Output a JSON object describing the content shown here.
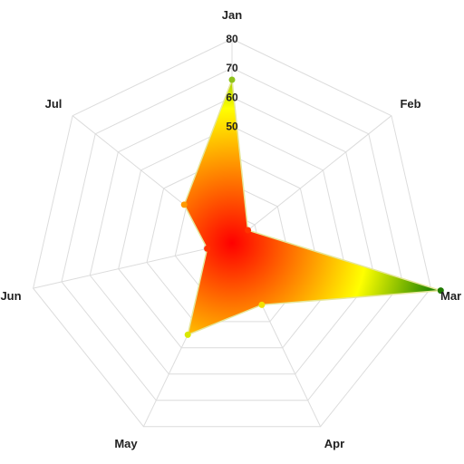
{
  "chart_data": {
    "type": "radar",
    "categories": [
      "Jan",
      "Feb",
      "Mar",
      "Apr",
      "May",
      "Jun",
      "Jul"
    ],
    "series": [
      {
        "values": [
          64,
          8,
          84,
          27,
          40,
          10,
          24
        ]
      }
    ],
    "ylim": [
      0,
      80
    ],
    "yticks": [
      "80",
      "70",
      "60",
      "50"
    ],
    "grid": true,
    "gradient_colors": [
      "#ff0000",
      "#ff9900",
      "#ffff00",
      "#2a8a00"
    ],
    "point_colors": [
      "#8fc21b",
      "#ff3300",
      "#1f7a00",
      "#f2e200",
      "#d9e800",
      "#ff3300",
      "#ff9900"
    ]
  }
}
